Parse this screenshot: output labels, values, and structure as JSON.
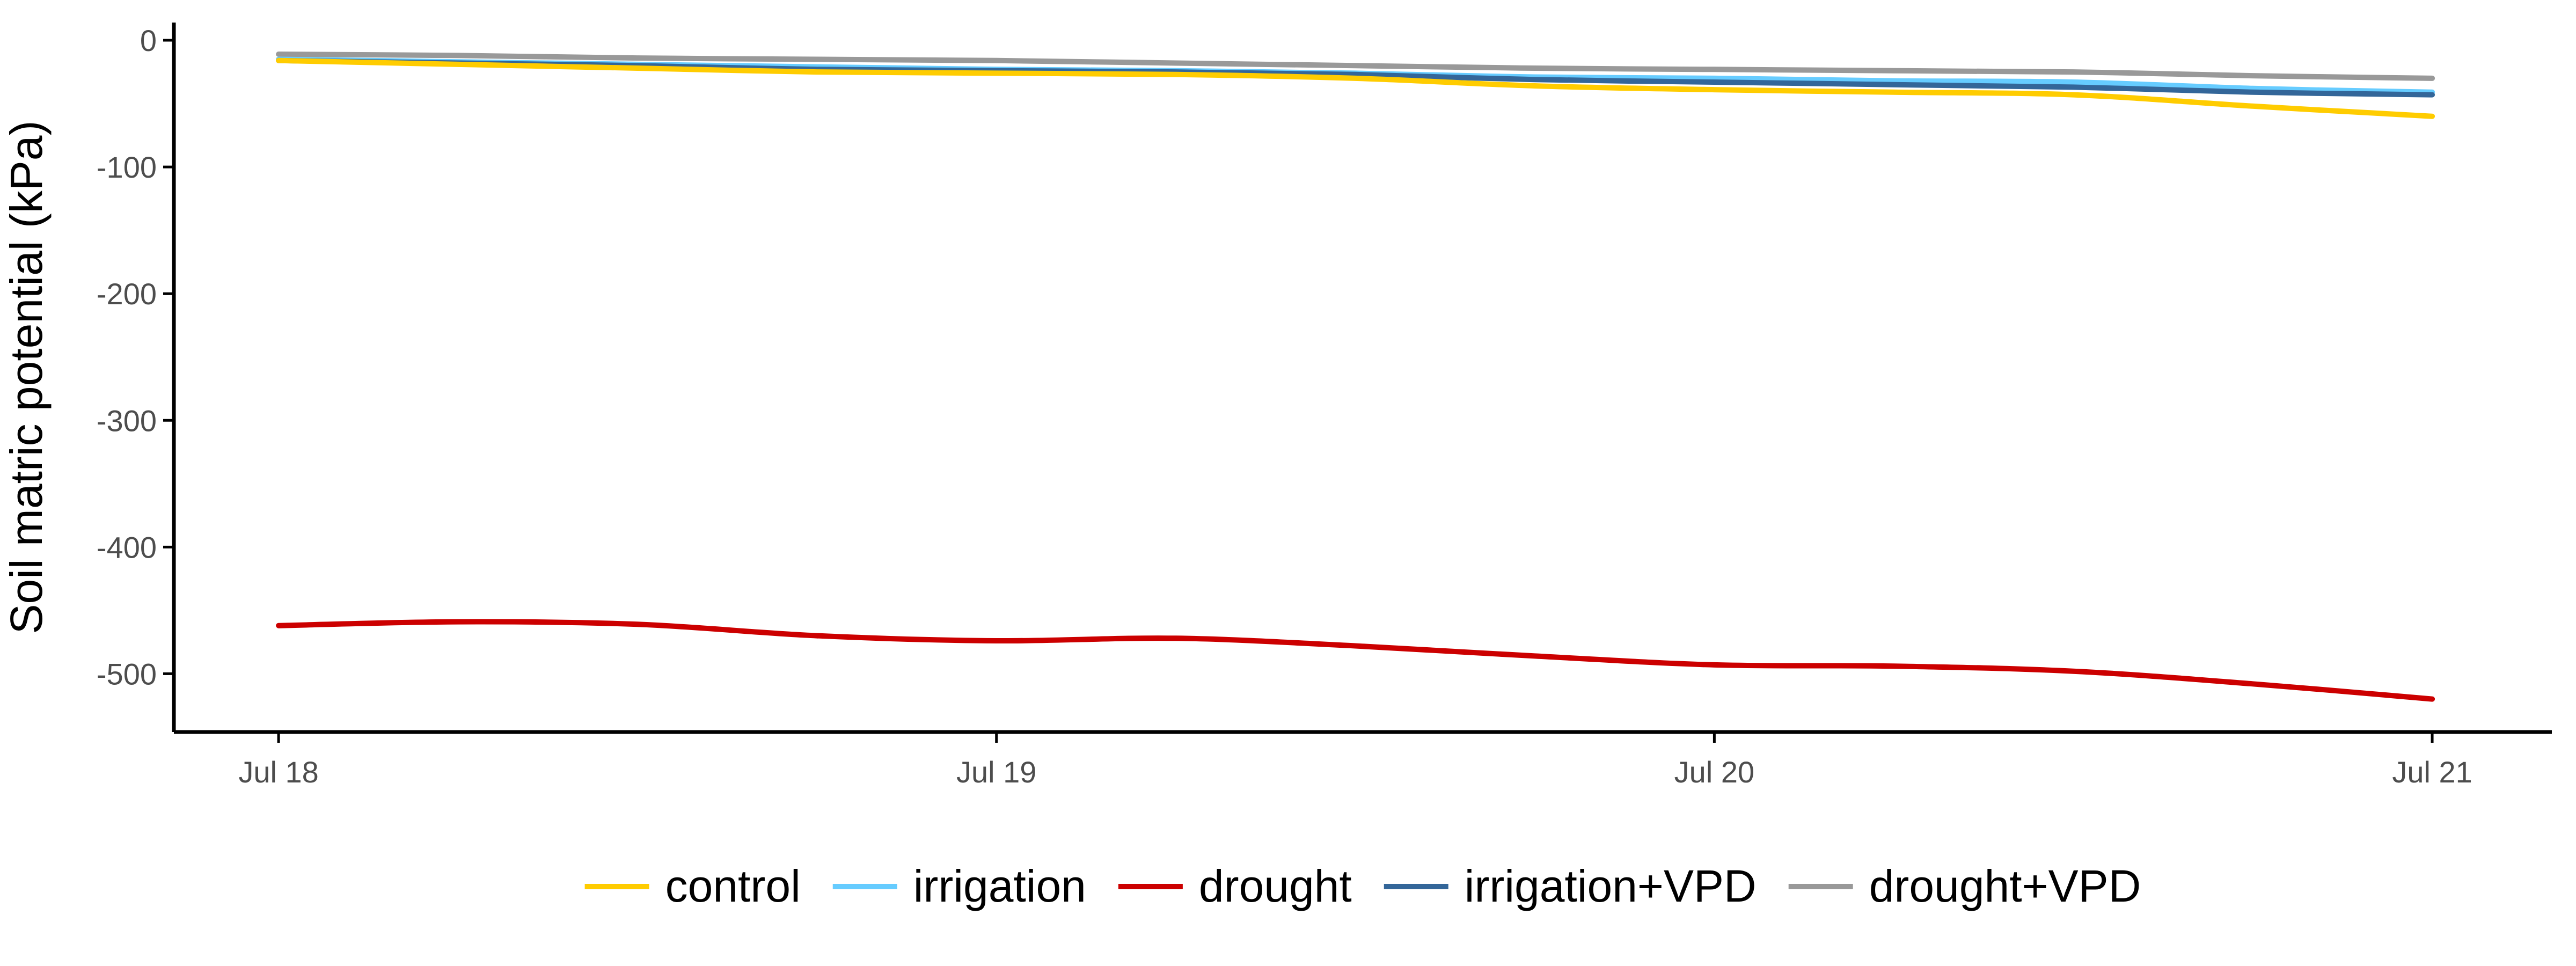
{
  "chart_data": {
    "type": "line",
    "ylabel": "Soil matric potential (kPa)",
    "xlabel": "",
    "title": "",
    "grid": false,
    "legend_position": "bottom",
    "xlim": [
      "2021-07-17T20:30",
      "2021-07-21T04:00"
    ],
    "ylim": [
      -546,
      14
    ],
    "x_ticks": [
      {
        "value": "2021-07-18T00:00",
        "label": "Jul 18"
      },
      {
        "value": "2021-07-19T00:00",
        "label": "Jul 19"
      },
      {
        "value": "2021-07-20T00:00",
        "label": "Jul 20"
      },
      {
        "value": "2021-07-21T00:00",
        "label": "Jul 21"
      }
    ],
    "y_ticks": [
      0,
      -100,
      -200,
      -300,
      -400,
      -500
    ],
    "x": [
      "2021-07-18T00:00",
      "2021-07-18T06:00",
      "2021-07-18T12:00",
      "2021-07-18T18:00",
      "2021-07-19T00:00",
      "2021-07-19T06:00",
      "2021-07-19T12:00",
      "2021-07-19T18:00",
      "2021-07-20T00:00",
      "2021-07-20T06:00",
      "2021-07-20T12:00",
      "2021-07-20T18:00",
      "2021-07-21T00:00"
    ],
    "series": [
      {
        "name": "control",
        "color": "#FFCC00",
        "values": [
          -16,
          -19,
          -22,
          -25,
          -26,
          -27,
          -30,
          -36,
          -39,
          -41,
          -43,
          -52,
          -60
        ]
      },
      {
        "name": "irrigation",
        "color": "#66CCFF",
        "values": [
          -15,
          -17,
          -19,
          -21,
          -23,
          -24,
          -26,
          -29,
          -30,
          -32,
          -33,
          -38,
          -41
        ]
      },
      {
        "name": "drought",
        "color": "#CC0000",
        "values": [
          -462,
          -459,
          -461,
          -470,
          -474,
          -472,
          -478,
          -486,
          -493,
          -494,
          -498,
          -508,
          -520
        ]
      },
      {
        "name": "irrigation+VPD",
        "color": "#336699",
        "values": [
          -16,
          -18,
          -20,
          -23,
          -24,
          -25,
          -27,
          -31,
          -33,
          -35,
          -37,
          -41,
          -43
        ]
      },
      {
        "name": "drought+VPD",
        "color": "#999999",
        "values": [
          -11,
          -12,
          -14,
          -15,
          -16,
          -18,
          -20,
          -22,
          -23,
          -24,
          -25,
          -28,
          -30
        ]
      }
    ]
  }
}
